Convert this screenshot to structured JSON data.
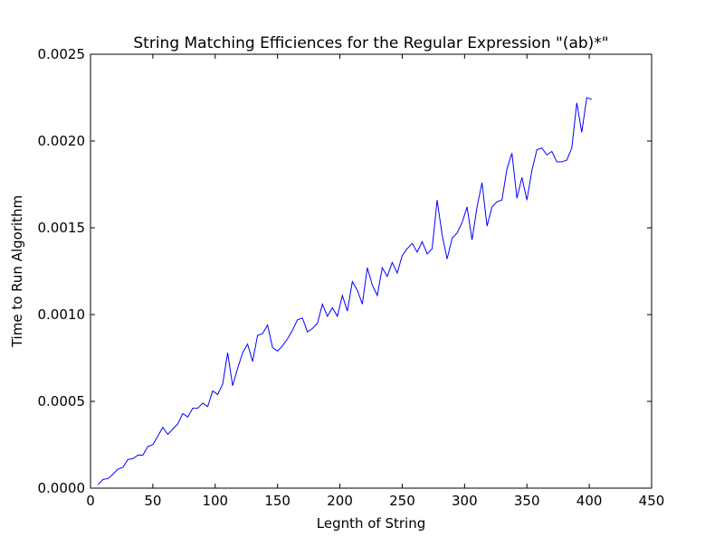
{
  "chart_data": {
    "type": "line",
    "title": "String Matching Efficiences for the Regular Expression \"(ab)*\"",
    "xlabel": "Legnth of String",
    "ylabel": "Time to Run Algorithm",
    "x": [
      6,
      10,
      14,
      18,
      22,
      26,
      30,
      34,
      38,
      42,
      46,
      50,
      54,
      58,
      62,
      66,
      70,
      74,
      78,
      82,
      86,
      90,
      94,
      98,
      102,
      106,
      110,
      114,
      118,
      122,
      126,
      130,
      134,
      138,
      142,
      146,
      150,
      154,
      158,
      162,
      166,
      170,
      174,
      178,
      182,
      186,
      190,
      194,
      198,
      202,
      206,
      210,
      214,
      218,
      222,
      226,
      230,
      234,
      238,
      242,
      246,
      250,
      254,
      258,
      262,
      266,
      270,
      274,
      278,
      282,
      286,
      290,
      294,
      298,
      302,
      306,
      310,
      314,
      318,
      322,
      326,
      330,
      334,
      338,
      342,
      346,
      350,
      354,
      358,
      362,
      366,
      370,
      374,
      378,
      382,
      386,
      390,
      394,
      398,
      402
    ],
    "series": [
      {
        "color": "#0000ff",
        "values": [
          2e-05,
          5e-05,
          5.5e-05,
          8e-05,
          0.00011,
          0.00012,
          0.000165,
          0.00017,
          0.00019,
          0.00019,
          0.00024,
          0.00025,
          0.0003,
          0.00035,
          0.00031,
          0.00034,
          0.00037,
          0.00043,
          0.00041,
          0.00046,
          0.00046,
          0.00049,
          0.00047,
          0.00056,
          0.00054,
          0.0006,
          0.00078,
          0.00059,
          0.00069,
          0.00078,
          0.00083,
          0.00073,
          0.00088,
          0.00089,
          0.00094,
          0.00081,
          0.00079,
          0.00082,
          0.00086,
          0.00091,
          0.00097,
          0.00098,
          0.0009,
          0.00092,
          0.00095,
          0.00106,
          0.00099,
          0.00104,
          0.00099,
          0.00111,
          0.00102,
          0.00119,
          0.00114,
          0.00106,
          0.00127,
          0.00117,
          0.00111,
          0.00127,
          0.00122,
          0.0013,
          0.00124,
          0.00134,
          0.00138,
          0.00141,
          0.00136,
          0.00142,
          0.00135,
          0.00138,
          0.00166,
          0.00146,
          0.00132,
          0.00144,
          0.00147,
          0.00153,
          0.00162,
          0.00143,
          0.00162,
          0.00176,
          0.00151,
          0.00162,
          0.00165,
          0.00166,
          0.00184,
          0.00193,
          0.00167,
          0.00179,
          0.00166,
          0.00183,
          0.00195,
          0.00196,
          0.00192,
          0.00194,
          0.00188,
          0.00188,
          0.00189,
          0.00196,
          0.00222,
          0.00205,
          0.00225,
          0.00224
        ]
      }
    ],
    "xlim": [
      0,
      450
    ],
    "xticks": [
      0,
      50,
      100,
      150,
      200,
      250,
      300,
      350,
      400,
      450
    ],
    "ylim": [
      0,
      0.0025
    ],
    "yticks": [
      {
        "value": 0,
        "label": "0.0000"
      },
      {
        "value": 0.0005,
        "label": "0.0005"
      },
      {
        "value": 0.001,
        "label": "0.0010"
      },
      {
        "value": 0.0015,
        "label": "0.0015"
      },
      {
        "value": 0.002,
        "label": "0.0020"
      },
      {
        "value": 0.0025,
        "label": "0.0025"
      }
    ]
  }
}
